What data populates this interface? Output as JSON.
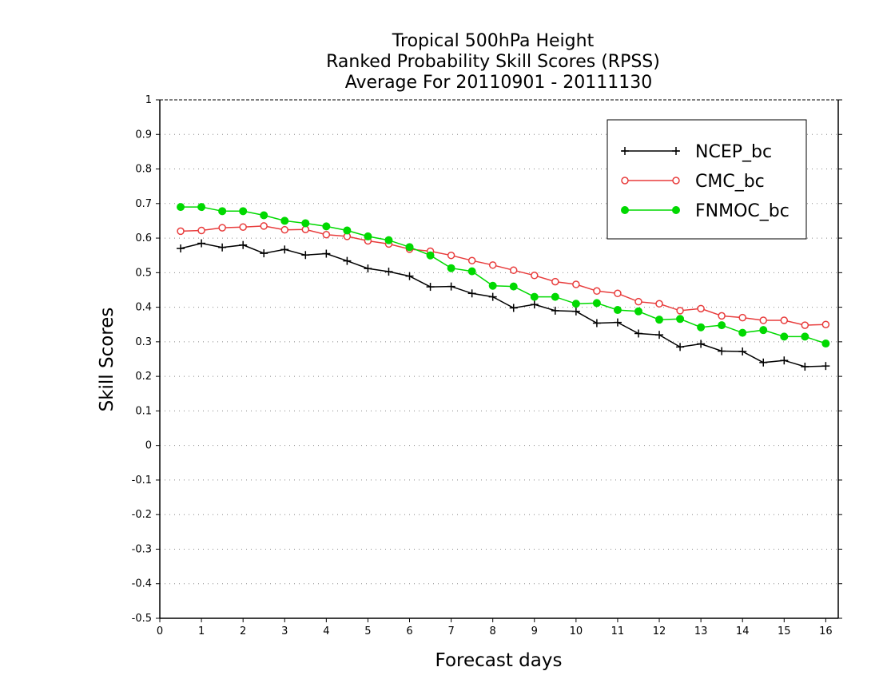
{
  "chart_data": {
    "type": "line",
    "title": "Tropical 500hPa Height",
    "subtitle": "Ranked Probability Skill Scores (RPSS)",
    "period": "Average For 20110901 - 20111130",
    "xlabel": "Forecast days",
    "ylabel": "Skill Scores",
    "xlim": [
      0,
      16.3
    ],
    "ylim": [
      -0.5,
      1
    ],
    "x_ticks": [
      "0",
      "1",
      "2",
      "3",
      "4",
      "5",
      "6",
      "7",
      "8",
      "9",
      "10",
      "11",
      "12",
      "13",
      "14",
      "15",
      "16"
    ],
    "y_ticks": [
      "1",
      "0.9",
      "0.8",
      "0.7",
      "0.6",
      "0.5",
      "0.4",
      "0.3",
      "0.2",
      "0.1",
      "0",
      "-0.1",
      "-0.2",
      "-0.3",
      "-0.4",
      "-0.5"
    ],
    "grid": true,
    "legend_position": "top-right",
    "x": [
      0.5,
      1,
      1.5,
      2,
      2.5,
      3,
      3.5,
      4,
      4.5,
      5,
      5.5,
      6,
      6.5,
      7,
      7.5,
      8,
      8.5,
      9,
      9.5,
      10,
      10.5,
      11,
      11.5,
      12,
      12.5,
      13,
      13.5,
      14,
      14.5,
      15,
      15.5,
      16
    ],
    "series": [
      {
        "name": "NCEP_bc",
        "color": "#000000",
        "marker": "plus",
        "values": [
          0.57,
          0.585,
          0.573,
          0.58,
          0.556,
          0.567,
          0.551,
          0.555,
          0.534,
          0.512,
          0.503,
          0.49,
          0.459,
          0.46,
          0.44,
          0.43,
          0.398,
          0.408,
          0.39,
          0.388,
          0.354,
          0.356,
          0.324,
          0.32,
          0.285,
          0.294,
          0.273,
          0.272,
          0.24,
          0.246,
          0.228,
          0.23
        ]
      },
      {
        "name": "CMC_bc",
        "color": "#e83c3c",
        "marker": "open-circle",
        "values": [
          0.62,
          0.622,
          0.63,
          0.632,
          0.635,
          0.624,
          0.625,
          0.61,
          0.605,
          0.592,
          0.583,
          0.568,
          0.562,
          0.55,
          0.535,
          0.522,
          0.507,
          0.492,
          0.474,
          0.466,
          0.447,
          0.44,
          0.416,
          0.41,
          0.39,
          0.396,
          0.375,
          0.37,
          0.362,
          0.362,
          0.348,
          0.35
        ]
      },
      {
        "name": "FNMOC_bc",
        "color": "#00d900",
        "marker": "filled-circle",
        "values": [
          0.69,
          0.69,
          0.678,
          0.678,
          0.666,
          0.65,
          0.643,
          0.634,
          0.622,
          0.605,
          0.594,
          0.574,
          0.55,
          0.513,
          0.504,
          0.462,
          0.46,
          0.43,
          0.43,
          0.41,
          0.412,
          0.392,
          0.388,
          0.364,
          0.366,
          0.342,
          0.348,
          0.326,
          0.334,
          0.315,
          0.315,
          0.295
        ]
      }
    ]
  }
}
